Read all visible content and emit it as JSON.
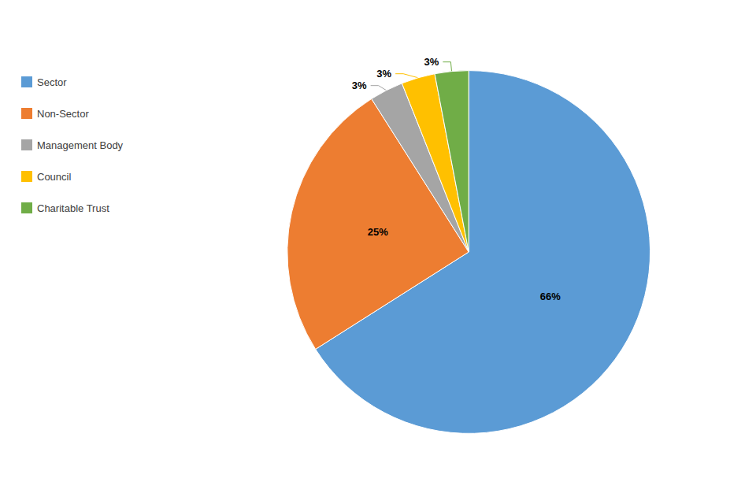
{
  "chart_data": {
    "type": "pie",
    "categories": [
      "Sector",
      "Non-Sector",
      "Management Body",
      "Council",
      "Charitable Trust"
    ],
    "values": [
      66,
      25,
      3,
      3,
      3
    ],
    "value_labels": [
      "66%",
      "25%",
      "3%",
      "3%",
      "3%"
    ],
    "colors": [
      "#5B9BD5",
      "#ED7D31",
      "#A5A5A5",
      "#FFC000",
      "#70AD47"
    ],
    "data_labels": true,
    "legend": "upper left"
  }
}
